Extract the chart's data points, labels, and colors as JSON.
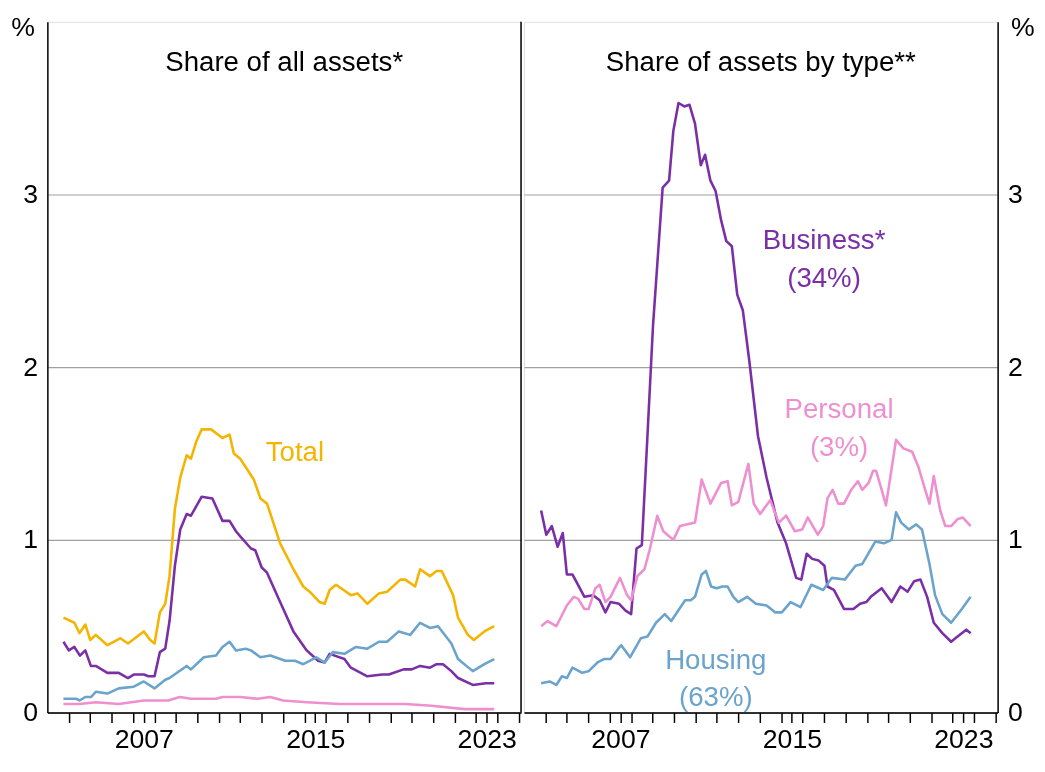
{
  "chart_data": [
    {
      "type": "line",
      "title": "Share of all assets*",
      "ylabel": "%",
      "xlim": [
        2002.5,
        2024.6
      ],
      "ylim": [
        0,
        4
      ],
      "yticks": [
        0,
        1,
        2,
        3
      ],
      "grid": "y",
      "xticks": [
        {
          "value": 2003.5,
          "label": null
        },
        {
          "value": 2004.5,
          "label": null
        },
        {
          "value": 2005.5,
          "label": null
        },
        {
          "value": 2006.5,
          "label": null
        },
        2007,
        {
          "value": 2007.5,
          "label": null
        },
        {
          "value": 2008.5,
          "label": null
        },
        {
          "value": 2009.5,
          "label": null
        },
        {
          "value": 2010.5,
          "label": null
        },
        {
          "value": 2011.5,
          "label": null
        },
        {
          "value": 2012.5,
          "label": null
        },
        {
          "value": 2013.5,
          "label": null
        },
        {
          "value": 2014.5,
          "label": null
        },
        2015,
        {
          "value": 2015.5,
          "label": null
        },
        {
          "value": 2016.5,
          "label": null
        },
        {
          "value": 2017.5,
          "label": null
        },
        {
          "value": 2018.5,
          "label": null
        },
        {
          "value": 2019.5,
          "label": null
        },
        {
          "value": 2020.5,
          "label": null
        },
        {
          "value": 2021.5,
          "label": null
        },
        {
          "value": 2022.5,
          "label": null
        },
        2023,
        {
          "value": 2023.5,
          "label": null
        },
        {
          "value": 2024.5,
          "label": null
        }
      ],
      "series": [
        {
          "name": "Total",
          "color": "#f5b400",
          "x": [
            2003.25,
            2003.76,
            2004.0,
            2004.27,
            2004.5,
            2004.76,
            2005.3,
            2005.9,
            2006.26,
            2007.0,
            2007.3,
            2007.5,
            2007.75,
            2008.0,
            2008.2,
            2008.45,
            2008.7,
            2009.0,
            2009.2,
            2009.45,
            2009.7,
            2010.14,
            2010.67,
            2011.0,
            2011.2,
            2011.5,
            2012.13,
            2012.44,
            2012.75,
            2013.36,
            2013.98,
            2014.44,
            2014.74,
            2015.2,
            2015.44,
            2015.67,
            2015.97,
            2016.66,
            2016.97,
            2017.43,
            2017.97,
            2018.35,
            2018.97,
            2019.2,
            2019.66,
            2019.89,
            2020.35,
            2020.66,
            2020.9,
            2021.43,
            2021.66,
            2022.12,
            2022.4,
            2022.89,
            2023.35
          ],
          "values": [
            0.55,
            0.52,
            0.46,
            0.51,
            0.42,
            0.45,
            0.39,
            0.43,
            0.4,
            0.47,
            0.42,
            0.4,
            0.58,
            0.63,
            0.79,
            1.18,
            1.36,
            1.49,
            1.47,
            1.57,
            1.64,
            1.64,
            1.59,
            1.61,
            1.5,
            1.47,
            1.35,
            1.24,
            1.21,
            0.98,
            0.83,
            0.73,
            0.7,
            0.64,
            0.63,
            0.71,
            0.74,
            0.68,
            0.69,
            0.63,
            0.69,
            0.7,
            0.77,
            0.77,
            0.73,
            0.83,
            0.79,
            0.82,
            0.82,
            0.68,
            0.55,
            0.45,
            0.42,
            0.47,
            0.5
          ]
        },
        {
          "color": "#7a2fa6",
          "x": [
            2003.25,
            2003.5,
            2003.76,
            2004.02,
            2004.27,
            2004.53,
            2004.76,
            2005.3,
            2005.83,
            2006.26,
            2006.53,
            2007.0,
            2007.22,
            2007.5,
            2007.75,
            2008.0,
            2008.2,
            2008.45,
            2008.7,
            2009.0,
            2009.2,
            2009.7,
            2010.2,
            2010.67,
            2011.0,
            2011.3,
            2011.5,
            2012.0,
            2012.2,
            2012.5,
            2012.75,
            2013.36,
            2013.98,
            2014.6,
            2015.13,
            2015.44,
            2015.67,
            2016.36,
            2016.66,
            2017.43,
            2018.12,
            2018.43,
            2019.12,
            2019.5,
            2019.89,
            2020.35,
            2020.66,
            2020.96,
            2021.35,
            2021.66,
            2022.35,
            2022.96,
            2023.35
          ],
          "values": [
            0.41,
            0.36,
            0.38,
            0.33,
            0.36,
            0.27,
            0.27,
            0.23,
            0.23,
            0.2,
            0.22,
            0.22,
            0.21,
            0.21,
            0.35,
            0.37,
            0.53,
            0.85,
            1.06,
            1.15,
            1.14,
            1.25,
            1.24,
            1.11,
            1.11,
            1.05,
            1.02,
            0.95,
            0.94,
            0.84,
            0.81,
            0.64,
            0.47,
            0.36,
            0.3,
            0.29,
            0.34,
            0.31,
            0.26,
            0.21,
            0.22,
            0.22,
            0.25,
            0.25,
            0.27,
            0.26,
            0.28,
            0.28,
            0.24,
            0.2,
            0.16,
            0.17,
            0.17
          ]
        },
        {
          "color": "#6aa3cc",
          "x": [
            2003.25,
            2003.84,
            2004.0,
            2004.27,
            2004.53,
            2004.76,
            2005.3,
            2005.83,
            2006.53,
            2007.0,
            2007.5,
            2008.0,
            2008.2,
            2009.0,
            2009.2,
            2009.8,
            2010.37,
            2010.67,
            2011.0,
            2011.3,
            2011.75,
            2012.0,
            2012.44,
            2012.9,
            2013.6,
            2014.05,
            2014.44,
            2015.05,
            2015.44,
            2015.82,
            2016.36,
            2016.9,
            2017.43,
            2017.97,
            2018.35,
            2018.9,
            2019.43,
            2019.89,
            2020.35,
            2020.73,
            2021.35,
            2021.66,
            2022.35,
            2022.89,
            2023.35
          ],
          "values": [
            0.08,
            0.08,
            0.07,
            0.09,
            0.09,
            0.12,
            0.11,
            0.14,
            0.15,
            0.18,
            0.14,
            0.19,
            0.2,
            0.27,
            0.25,
            0.32,
            0.33,
            0.38,
            0.41,
            0.36,
            0.37,
            0.36,
            0.32,
            0.33,
            0.3,
            0.3,
            0.28,
            0.32,
            0.29,
            0.35,
            0.34,
            0.38,
            0.37,
            0.41,
            0.41,
            0.47,
            0.45,
            0.52,
            0.49,
            0.5,
            0.4,
            0.31,
            0.24,
            0.28,
            0.31
          ]
        },
        {
          "color": "#ee8fcf",
          "x": [
            2003.25,
            2004.0,
            2004.76,
            2005.83,
            2007.0,
            2008.14,
            2008.68,
            2009.2,
            2010.37,
            2010.67,
            2011.5,
            2012.3,
            2012.9,
            2013.5,
            2014.6,
            2016.13,
            2017.66,
            2019.2,
            2020.43,
            2021.96,
            2023.35
          ],
          "values": [
            0.05,
            0.05,
            0.06,
            0.05,
            0.07,
            0.07,
            0.09,
            0.08,
            0.08,
            0.09,
            0.09,
            0.08,
            0.09,
            0.07,
            0.06,
            0.05,
            0.05,
            0.05,
            0.04,
            0.02,
            0.02
          ]
        }
      ]
    },
    {
      "type": "line",
      "title": "Share of assets by type**",
      "ylabel": "%",
      "xlim": [
        2002.5,
        2024.6
      ],
      "ylim": [
        0,
        4
      ],
      "yticks": [
        0,
        1,
        2,
        3
      ],
      "grid": "y",
      "xticks": [
        {
          "value": 2003.5,
          "label": null
        },
        {
          "value": 2004.5,
          "label": null
        },
        {
          "value": 2005.5,
          "label": null
        },
        {
          "value": 2006.5,
          "label": null
        },
        2007,
        {
          "value": 2007.5,
          "label": null
        },
        {
          "value": 2008.5,
          "label": null
        },
        {
          "value": 2009.5,
          "label": null
        },
        {
          "value": 2010.5,
          "label": null
        },
        {
          "value": 2011.5,
          "label": null
        },
        {
          "value": 2012.5,
          "label": null
        },
        {
          "value": 2013.5,
          "label": null
        },
        {
          "value": 2014.5,
          "label": null
        },
        2015,
        {
          "value": 2015.5,
          "label": null
        },
        {
          "value": 2016.5,
          "label": null
        },
        {
          "value": 2017.5,
          "label": null
        },
        {
          "value": 2018.5,
          "label": null
        },
        {
          "value": 2019.5,
          "label": null
        },
        {
          "value": 2020.5,
          "label": null
        },
        {
          "value": 2021.5,
          "label": null
        },
        {
          "value": 2022.5,
          "label": null
        },
        2023,
        {
          "value": 2023.5,
          "label": null
        },
        {
          "value": 2024.5,
          "label": null
        }
      ],
      "series": [
        {
          "name": "Business*\n(34%)",
          "color": "#7a2fa6",
          "x": [
            2003.3,
            2003.54,
            2003.8,
            2004.07,
            2004.31,
            2004.5,
            2004.76,
            2005.32,
            2005.73,
            2006.03,
            2006.3,
            2006.54,
            2006.94,
            2007.24,
            2007.5,
            2007.75,
            2008.0,
            2008.26,
            2008.52,
            2008.97,
            2009.27,
            2009.47,
            2009.71,
            2009.98,
            2010.22,
            2010.48,
            2010.75,
            2010.95,
            2011.2,
            2011.44,
            2011.7,
            2011.94,
            2012.2,
            2012.45,
            2012.71,
            2013.01,
            2013.42,
            2013.82,
            2014.33,
            2014.73,
            2015.2,
            2015.44,
            2015.69,
            2015.95,
            2016.25,
            2016.52,
            2016.66,
            2016.96,
            2017.43,
            2017.87,
            2018.18,
            2018.48,
            2018.68,
            2019.19,
            2019.65,
            2020.06,
            2020.4,
            2020.7,
            2021.0,
            2021.31,
            2021.62,
            2022.02,
            2022.43,
            2022.73,
            2023.14,
            2023.34
          ],
          "values": [
            1.17,
            1.03,
            1.08,
            0.96,
            1.04,
            0.8,
            0.8,
            0.67,
            0.68,
            0.65,
            0.58,
            0.64,
            0.63,
            0.59,
            0.57,
            0.95,
            0.97,
            1.6,
            2.24,
            3.04,
            3.08,
            3.37,
            3.53,
            3.51,
            3.52,
            3.41,
            3.17,
            3.23,
            3.08,
            3.02,
            2.85,
            2.73,
            2.7,
            2.42,
            2.33,
            2.04,
            1.6,
            1.36,
            1.1,
            0.98,
            0.78,
            0.77,
            0.92,
            0.89,
            0.88,
            0.85,
            0.73,
            0.71,
            0.6,
            0.6,
            0.63,
            0.64,
            0.67,
            0.72,
            0.64,
            0.73,
            0.7,
            0.76,
            0.77,
            0.67,
            0.52,
            0.46,
            0.41,
            0.44,
            0.48,
            0.46
          ]
        },
        {
          "name": "Personal\n(3%)",
          "color": "#ee8fcf",
          "x": [
            2003.3,
            2003.6,
            2004.01,
            2004.5,
            2004.82,
            2005.02,
            2005.32,
            2005.52,
            2005.83,
            2006.03,
            2006.3,
            2006.54,
            2006.98,
            2007.31,
            2007.5,
            2007.79,
            2008.12,
            2008.36,
            2008.72,
            2009.0,
            2009.47,
            2009.78,
            2010.48,
            2010.79,
            2011.2,
            2011.7,
            2012.0,
            2012.2,
            2012.5,
            2012.97,
            2013.22,
            2013.52,
            2013.99,
            2014.39,
            2014.73,
            2015.14,
            2015.48,
            2015.74,
            2016.21,
            2016.46,
            2016.66,
            2016.9,
            2017.16,
            2017.43,
            2017.77,
            2018.08,
            2018.28,
            2018.58,
            2018.79,
            2018.93,
            2019.19,
            2019.39,
            2019.86,
            2020.2,
            2020.61,
            2020.91,
            2021.22,
            2021.42,
            2021.62,
            2021.92,
            2022.16,
            2022.43,
            2022.73,
            2022.97,
            2023.34
          ],
          "values": [
            0.5,
            0.53,
            0.5,
            0.62,
            0.67,
            0.66,
            0.6,
            0.6,
            0.72,
            0.74,
            0.64,
            0.67,
            0.78,
            0.68,
            0.65,
            0.79,
            0.83,
            0.94,
            1.14,
            1.05,
            1.0,
            1.08,
            1.1,
            1.35,
            1.21,
            1.33,
            1.34,
            1.2,
            1.22,
            1.44,
            1.21,
            1.15,
            1.23,
            1.1,
            1.14,
            1.05,
            1.06,
            1.13,
            1.03,
            1.08,
            1.24,
            1.29,
            1.21,
            1.21,
            1.29,
            1.34,
            1.29,
            1.33,
            1.4,
            1.4,
            1.29,
            1.2,
            1.58,
            1.53,
            1.51,
            1.42,
            1.29,
            1.21,
            1.37,
            1.17,
            1.08,
            1.08,
            1.12,
            1.13,
            1.08
          ]
        },
        {
          "name": "Housing\n(63%)",
          "color": "#6aa3cc",
          "x": [
            2003.3,
            2003.7,
            2004.01,
            2004.27,
            2004.5,
            2004.76,
            2005.22,
            2005.52,
            2005.93,
            2006.23,
            2006.54,
            2006.9,
            2007.04,
            2007.45,
            2007.95,
            2008.26,
            2008.66,
            2009.07,
            2009.37,
            2010.02,
            2010.28,
            2010.48,
            2010.79,
            2010.99,
            2011.23,
            2011.49,
            2011.76,
            2012.0,
            2012.27,
            2012.5,
            2012.91,
            2013.32,
            2013.82,
            2014.23,
            2014.53,
            2014.94,
            2015.4,
            2015.91,
            2016.46,
            2016.86,
            2017.47,
            2017.97,
            2018.28,
            2018.89,
            2019.29,
            2019.65,
            2019.86,
            2020.1,
            2020.46,
            2020.8,
            2021.07,
            2021.42,
            2021.68,
            2022.02,
            2022.43,
            2022.93,
            2023.34
          ],
          "values": [
            0.17,
            0.18,
            0.16,
            0.21,
            0.2,
            0.26,
            0.23,
            0.24,
            0.29,
            0.31,
            0.31,
            0.37,
            0.39,
            0.32,
            0.43,
            0.44,
            0.52,
            0.57,
            0.53,
            0.65,
            0.65,
            0.67,
            0.8,
            0.82,
            0.73,
            0.72,
            0.73,
            0.73,
            0.67,
            0.64,
            0.67,
            0.63,
            0.62,
            0.58,
            0.58,
            0.64,
            0.61,
            0.74,
            0.71,
            0.78,
            0.77,
            0.85,
            0.86,
            0.99,
            0.98,
            1.0,
            1.16,
            1.1,
            1.06,
            1.09,
            1.06,
            0.86,
            0.68,
            0.57,
            0.52,
            0.6,
            0.67
          ]
        }
      ]
    }
  ]
}
